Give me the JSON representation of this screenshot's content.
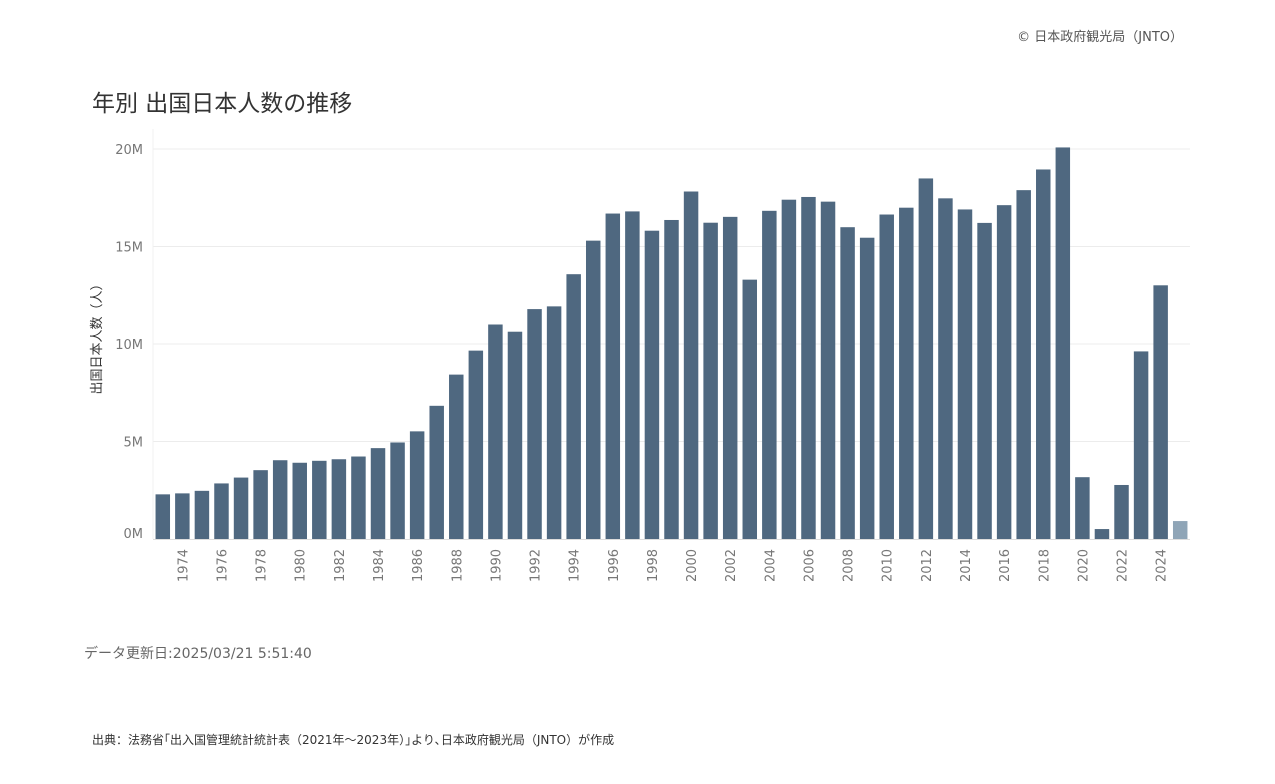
{
  "header": {
    "copyright": "© 日本政府観光局（JNTO）",
    "title": "年別 出国日本人数の推移"
  },
  "footer": {
    "updated": "データ更新日:2025/03/21 5:51:40",
    "source": "出典：法務省｢出入国管理統計統計表（2021年～2023年）｣より､日本政府観光局（JNTO）が作成"
  },
  "colors": {
    "bar": "#4f6880",
    "bar_highlight": "#8fa5b7",
    "grid": "#ececec",
    "axis_text": "#777777"
  },
  "chart_data": {
    "type": "bar",
    "ylabel": "出国日本人数（人）",
    "xlabel": "",
    "ylim": [
      0,
      20000000
    ],
    "yticks": [
      0,
      5000000,
      10000000,
      15000000,
      20000000
    ],
    "ytick_labels": [
      "0M",
      "5M",
      "10M",
      "15M",
      "20M"
    ],
    "x_labelled": [
      "1974",
      "1976",
      "1978",
      "1980",
      "1982",
      "1984",
      "1986",
      "1988",
      "1990",
      "1992",
      "1994",
      "1996",
      "1998",
      "2000",
      "2002",
      "2004",
      "2006",
      "2008",
      "2010",
      "2012",
      "2014",
      "2016",
      "2018",
      "2020",
      "2022",
      "2024"
    ],
    "categories": [
      "1973",
      "1974",
      "1975",
      "1976",
      "1977",
      "1978",
      "1979",
      "1980",
      "1981",
      "1982",
      "1983",
      "1984",
      "1985",
      "1986",
      "1987",
      "1988",
      "1989",
      "1990",
      "1991",
      "1992",
      "1993",
      "1994",
      "1995",
      "1996",
      "1997",
      "1998",
      "1999",
      "2000",
      "2001",
      "2002",
      "2003",
      "2004",
      "2005",
      "2006",
      "2007",
      "2008",
      "2009",
      "2010",
      "2011",
      "2012",
      "2013",
      "2014",
      "2015",
      "2016",
      "2017",
      "2018",
      "2019",
      "2020",
      "2021",
      "2022",
      "2023",
      "2024",
      "2025"
    ],
    "values": [
      2290000,
      2340000,
      2470000,
      2850000,
      3150000,
      3530000,
      4040000,
      3910000,
      4010000,
      4090000,
      4230000,
      4660000,
      4950000,
      5520000,
      6830000,
      8430000,
      9660000,
      11000000,
      10630000,
      11790000,
      11930000,
      13580000,
      15300000,
      16690000,
      16800000,
      15810000,
      16360000,
      17820000,
      16220000,
      16520000,
      13300000,
      16830000,
      17400000,
      17540000,
      17300000,
      15990000,
      15450000,
      16640000,
      16990000,
      18490000,
      17470000,
      16900000,
      16210000,
      17120000,
      17890000,
      18950000,
      20080000,
      3170000,
      510000,
      2770000,
      9620000,
      13010000,
      920000
    ],
    "highlight_index": 52
  }
}
